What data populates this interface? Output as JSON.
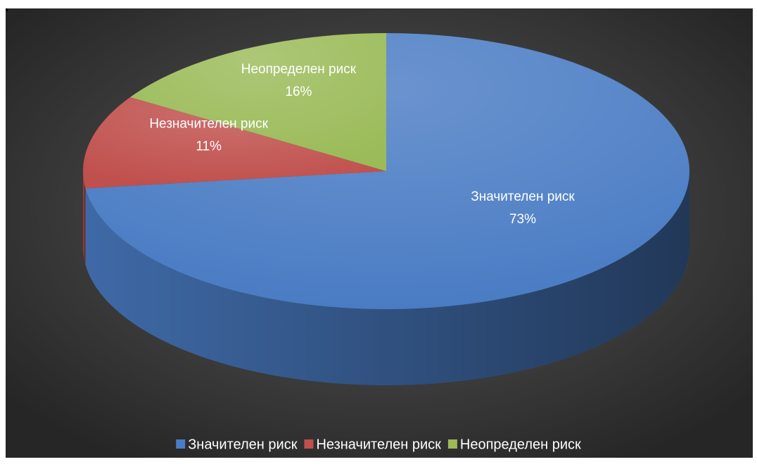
{
  "chart_data": {
    "type": "pie",
    "categories": [
      "Значителен риск",
      "Незначителен риск",
      "Неопределен риск"
    ],
    "values": [
      73,
      11,
      16
    ],
    "value_labels": [
      "73%",
      "11%",
      "16%"
    ],
    "colors": [
      "#4a7cc4",
      "#c0504d",
      "#9bbb59"
    ],
    "legend": "bottom"
  }
}
